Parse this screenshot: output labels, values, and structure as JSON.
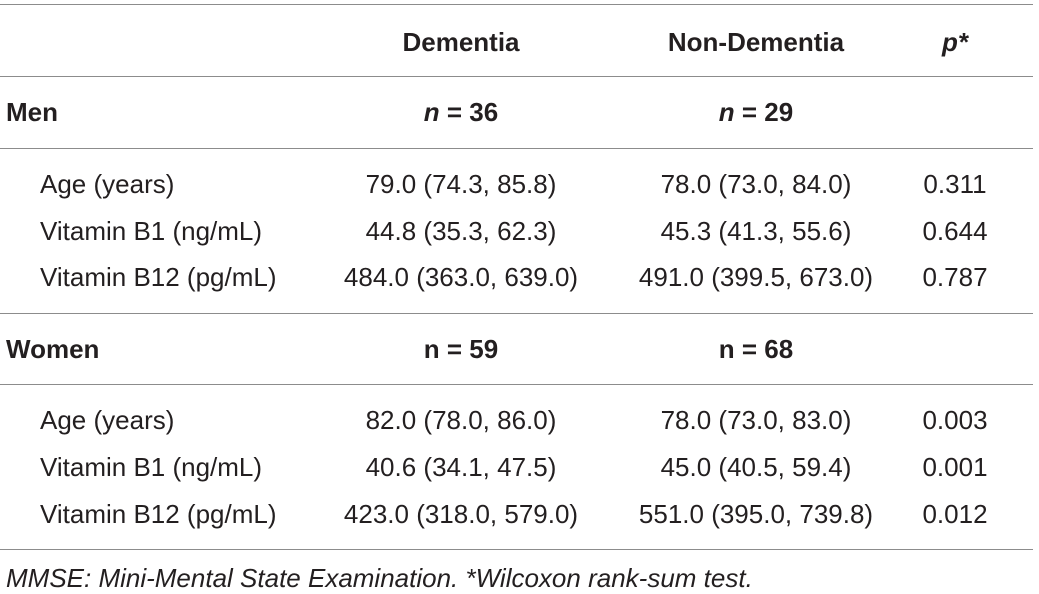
{
  "header": {
    "dementia": "Dementia",
    "non_dementia": "Non-Dementia",
    "p_value": "p*"
  },
  "sections": [
    {
      "label": "Men",
      "n_dementia_sym": "n",
      "n_dementia_val": "= 36",
      "n_non_sym": "n",
      "n_non_val": "= 29",
      "rows": [
        {
          "label": "Age (years)",
          "dementia": "79.0 (74.3, 85.8)",
          "non_dementia": "78.0 (73.0, 84.0)",
          "p": "0.311"
        },
        {
          "label": "Vitamin B1 (ng/mL)",
          "dementia": "44.8 (35.3, 62.3)",
          "non_dementia": "45.3 (41.3, 55.6)",
          "p": "0.644"
        },
        {
          "label": "Vitamin B12 (pg/mL)",
          "dementia": "484.0 (363.0, 639.0)",
          "non_dementia": "491.0 (399.5, 673.0)",
          "p": "0.787"
        }
      ]
    },
    {
      "label": "Women",
      "n_dementia": "n = 59",
      "n_non": "n = 68",
      "rows": [
        {
          "label": "Age (years)",
          "dementia": "82.0 (78.0, 86.0)",
          "non_dementia": "78.0 (73.0, 83.0)",
          "p": "0.003"
        },
        {
          "label": "Vitamin B1 (ng/mL)",
          "dementia": "40.6 (34.1, 47.5)",
          "non_dementia": "45.0 (40.5, 59.4)",
          "p": "0.001"
        },
        {
          "label": "Vitamin B12 (pg/mL)",
          "dementia": "423.0 (318.0, 579.0)",
          "non_dementia": "551.0 (395.0, 739.8)",
          "p": "0.012"
        }
      ]
    }
  ],
  "footnote": "MMSE: Mini-Mental State Examination. *Wilcoxon rank-sum test."
}
